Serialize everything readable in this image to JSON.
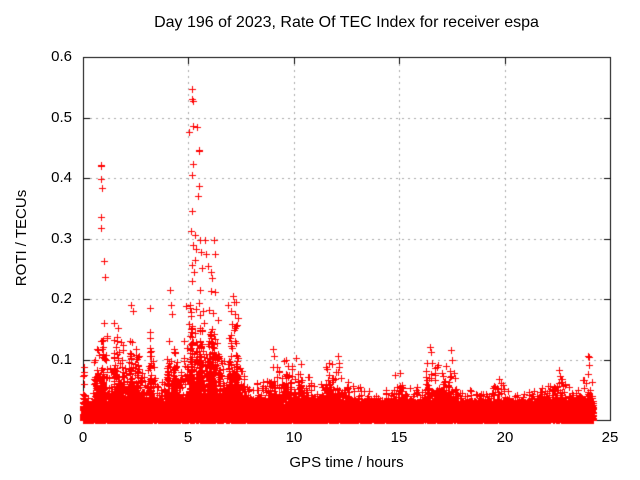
{
  "chart_data": {
    "type": "scatter",
    "title": "Day 196 of 2023, Rate Of TEC Index for receiver espa",
    "xlabel": "GPS time / hours",
    "ylabel": "ROTI / TECUs",
    "xlim": [
      0,
      25
    ],
    "ylim": [
      0,
      0.6
    ],
    "xticks": [
      0,
      5,
      10,
      15,
      20,
      25
    ],
    "yticks": [
      0,
      0.1,
      0.2,
      0.3,
      0.4,
      0.5,
      0.6
    ],
    "grid": true,
    "legend": "none",
    "x_data_range": [
      0,
      24.2
    ],
    "marker": {
      "shape": "plus",
      "color": "#ff0000",
      "size": 7
    },
    "grid_color": "#a8a8a8",
    "border_color": "#000000",
    "background": "#ffffff",
    "envelope_bins": [
      [
        0.0,
        0.15,
        0.09
      ],
      [
        0.15,
        0.5,
        0.05
      ],
      [
        0.5,
        0.75,
        0.13
      ],
      [
        0.75,
        1.15,
        0.175
      ],
      [
        1.15,
        1.45,
        0.09
      ],
      [
        1.45,
        1.9,
        0.165
      ],
      [
        1.9,
        2.15,
        0.09
      ],
      [
        2.15,
        2.65,
        0.175
      ],
      [
        2.65,
        3.05,
        0.1
      ],
      [
        3.05,
        3.45,
        0.155
      ],
      [
        3.45,
        4.0,
        0.07
      ],
      [
        4.0,
        4.45,
        0.16
      ],
      [
        4.45,
        4.8,
        0.1
      ],
      [
        4.8,
        5.75,
        0.235
      ],
      [
        5.75,
        6.45,
        0.215
      ],
      [
        6.45,
        6.85,
        0.12
      ],
      [
        6.85,
        7.35,
        0.2
      ],
      [
        7.35,
        7.7,
        0.09
      ],
      [
        7.7,
        8.4,
        0.065
      ],
      [
        8.4,
        8.8,
        0.075
      ],
      [
        8.8,
        9.6,
        0.1
      ],
      [
        9.6,
        10.5,
        0.1
      ],
      [
        10.5,
        11.0,
        0.085
      ],
      [
        11.0,
        11.5,
        0.065
      ],
      [
        11.5,
        12.3,
        0.1
      ],
      [
        12.3,
        13.0,
        0.065
      ],
      [
        13.0,
        14.0,
        0.055
      ],
      [
        14.0,
        14.7,
        0.05
      ],
      [
        14.7,
        15.2,
        0.075
      ],
      [
        15.2,
        16.2,
        0.055
      ],
      [
        16.2,
        16.9,
        0.1
      ],
      [
        16.9,
        17.7,
        0.1
      ],
      [
        17.7,
        18.5,
        0.055
      ],
      [
        18.5,
        19.4,
        0.05
      ],
      [
        19.4,
        20.0,
        0.07
      ],
      [
        20.0,
        21.4,
        0.05
      ],
      [
        21.4,
        22.2,
        0.065
      ],
      [
        22.2,
        22.8,
        0.08
      ],
      [
        22.8,
        23.7,
        0.06
      ],
      [
        23.7,
        24.2,
        0.07
      ]
    ],
    "high_points": [
      [
        0.05,
        0.088
      ],
      [
        0.06,
        0.075
      ],
      [
        0.07,
        0.06
      ],
      [
        0.85,
        0.422
      ],
      [
        0.87,
        0.42
      ],
      [
        0.86,
        0.398
      ],
      [
        0.88,
        0.383
      ],
      [
        0.86,
        0.335
      ],
      [
        0.87,
        0.318
      ],
      [
        1.0,
        0.262
      ],
      [
        1.02,
        0.237
      ],
      [
        2.3,
        0.19
      ],
      [
        2.35,
        0.18
      ],
      [
        3.2,
        0.185
      ],
      [
        4.15,
        0.215
      ],
      [
        4.18,
        0.19
      ],
      [
        4.2,
        0.175
      ],
      [
        5.19,
        0.547
      ],
      [
        5.17,
        0.53
      ],
      [
        5.21,
        0.527
      ],
      [
        5.2,
        0.486
      ],
      [
        5.4,
        0.484
      ],
      [
        5.05,
        0.476
      ],
      [
        5.48,
        0.447
      ],
      [
        5.52,
        0.445
      ],
      [
        5.2,
        0.423
      ],
      [
        5.15,
        0.405
      ],
      [
        5.5,
        0.387
      ],
      [
        5.45,
        0.37
      ],
      [
        5.15,
        0.345
      ],
      [
        5.1,
        0.312
      ],
      [
        5.3,
        0.305
      ],
      [
        5.55,
        0.298
      ],
      [
        5.22,
        0.29
      ],
      [
        5.35,
        0.283
      ],
      [
        5.6,
        0.278
      ],
      [
        5.3,
        0.265
      ],
      [
        5.15,
        0.257
      ],
      [
        5.65,
        0.252
      ],
      [
        5.25,
        0.245
      ],
      [
        5.8,
        0.298
      ],
      [
        6.2,
        0.297
      ],
      [
        5.85,
        0.274
      ],
      [
        6.24,
        0.274
      ],
      [
        5.95,
        0.255
      ],
      [
        6.05,
        0.245
      ],
      [
        6.14,
        0.235
      ],
      [
        6.9,
        0.19
      ],
      [
        7.0,
        0.18
      ],
      [
        7.1,
        0.205
      ],
      [
        7.15,
        0.195
      ],
      [
        7.2,
        0.175
      ],
      [
        7.25,
        0.155
      ],
      [
        7.3,
        0.105
      ],
      [
        9.0,
        0.118
      ],
      [
        9.05,
        0.105
      ],
      [
        10.1,
        0.102
      ],
      [
        12.1,
        0.105
      ],
      [
        12.15,
        0.095
      ],
      [
        15.05,
        0.078
      ],
      [
        16.45,
        0.12
      ],
      [
        16.5,
        0.112
      ],
      [
        16.55,
        0.095
      ],
      [
        17.45,
        0.115
      ],
      [
        17.5,
        0.1
      ],
      [
        19.75,
        0.068
      ],
      [
        22.6,
        0.082
      ],
      [
        22.62,
        0.072
      ],
      [
        23.98,
        0.106
      ],
      [
        24.0,
        0.104
      ],
      [
        24.0,
        0.091
      ],
      [
        23.97,
        0.076
      ]
    ],
    "render_hints": {
      "active_threshold": 0.12,
      "active_per_hour": 620,
      "normal_per_hour": 430,
      "base_per_hour": 360,
      "base_band": 0.032,
      "seed": 196
    }
  }
}
